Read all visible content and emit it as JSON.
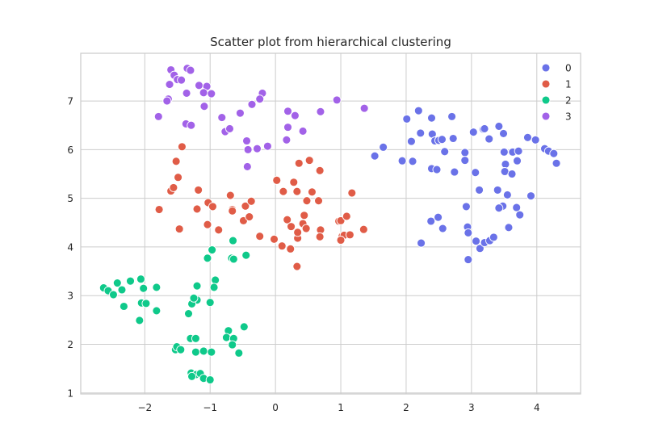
{
  "chart_data": {
    "type": "scatter",
    "title": "Scatter plot from hierarchical clustering",
    "xlabel": "",
    "ylabel": "",
    "xlim": [
      -2.98,
      4.67
    ],
    "ylim": [
      0.98,
      7.98
    ],
    "xticks": [
      -2,
      -1,
      0,
      1,
      2,
      3,
      4
    ],
    "xtick_labels": [
      "−2",
      "−1",
      "0",
      "1",
      "2",
      "3",
      "4"
    ],
    "yticks": [
      1,
      2,
      3,
      4,
      5,
      6,
      7
    ],
    "ytick_labels": [
      "1",
      "2",
      "3",
      "4",
      "5",
      "6",
      "7"
    ],
    "grid": true,
    "legend_position": "top-right",
    "series": [
      {
        "name": "0",
        "color": "#6a72e8",
        "points": [
          [
            1.52,
            5.87
          ],
          [
            1.65,
            6.05
          ],
          [
            1.94,
            5.77
          ],
          [
            2.01,
            6.63
          ],
          [
            2.1,
            5.76
          ],
          [
            2.08,
            6.17
          ],
          [
            2.19,
            6.8
          ],
          [
            2.22,
            6.34
          ],
          [
            2.39,
            6.65
          ],
          [
            2.4,
            6.32
          ],
          [
            2.44,
            6.18
          ],
          [
            2.5,
            6.19
          ],
          [
            2.55,
            6.21
          ],
          [
            2.72,
            6.23
          ],
          [
            2.7,
            6.68
          ],
          [
            2.59,
            5.96
          ],
          [
            2.39,
            5.61
          ],
          [
            2.47,
            5.59
          ],
          [
            2.74,
            5.54
          ],
          [
            2.9,
            5.94
          ],
          [
            2.9,
            5.78
          ],
          [
            3.03,
            6.36
          ],
          [
            3.18,
            6.42
          ],
          [
            3.2,
            6.43
          ],
          [
            3.27,
            6.22
          ],
          [
            3.42,
            6.48
          ],
          [
            3.49,
            6.33
          ],
          [
            3.5,
            5.95
          ],
          [
            3.63,
            5.95
          ],
          [
            3.72,
            5.97
          ],
          [
            3.7,
            5.77
          ],
          [
            3.52,
            5.7
          ],
          [
            3.51,
            5.55
          ],
          [
            3.62,
            5.5
          ],
          [
            3.86,
            6.25
          ],
          [
            3.98,
            6.2
          ],
          [
            4.12,
            6.02
          ],
          [
            4.18,
            5.97
          ],
          [
            4.26,
            5.92
          ],
          [
            4.3,
            5.72
          ],
          [
            3.06,
            5.53
          ],
          [
            3.12,
            5.17
          ],
          [
            3.4,
            5.17
          ],
          [
            3.55,
            5.07
          ],
          [
            3.69,
            4.81
          ],
          [
            3.48,
            4.84
          ],
          [
            3.42,
            4.8
          ],
          [
            3.91,
            5.05
          ],
          [
            3.74,
            4.66
          ],
          [
            3.57,
            4.4
          ],
          [
            2.92,
            4.83
          ],
          [
            2.94,
            4.41
          ],
          [
            2.95,
            4.29
          ],
          [
            3.07,
            4.12
          ],
          [
            3.13,
            3.97
          ],
          [
            3.2,
            4.09
          ],
          [
            3.28,
            4.13
          ],
          [
            3.34,
            4.2
          ],
          [
            2.95,
            3.74
          ],
          [
            2.23,
            4.08
          ],
          [
            2.38,
            4.53
          ],
          [
            2.49,
            4.61
          ],
          [
            2.56,
            4.38
          ]
        ]
      },
      {
        "name": "1",
        "color": "#e05c47",
        "points": [
          [
            -1.43,
            6.06
          ],
          [
            -1.52,
            5.76
          ],
          [
            -1.6,
            5.15
          ],
          [
            -1.56,
            5.22
          ],
          [
            -1.49,
            5.43
          ],
          [
            -1.78,
            4.77
          ],
          [
            -1.47,
            4.37
          ],
          [
            -1.18,
            5.17
          ],
          [
            -1.2,
            4.78
          ],
          [
            -1.03,
            4.91
          ],
          [
            -1.04,
            4.46
          ],
          [
            -0.96,
            4.83
          ],
          [
            -0.87,
            4.35
          ],
          [
            -0.69,
            5.06
          ],
          [
            -0.66,
            4.77
          ],
          [
            -0.66,
            4.74
          ],
          [
            -0.49,
            4.54
          ],
          [
            -0.46,
            4.84
          ],
          [
            -0.4,
            4.62
          ],
          [
            -0.37,
            4.94
          ],
          [
            -0.24,
            4.22
          ],
          [
            -0.02,
            4.16
          ],
          [
            0.02,
            5.37
          ],
          [
            0.12,
            5.14
          ],
          [
            0.1,
            4.02
          ],
          [
            0.18,
            4.56
          ],
          [
            0.24,
            4.42
          ],
          [
            0.23,
            3.96
          ],
          [
            0.28,
            5.33
          ],
          [
            0.33,
            5.14
          ],
          [
            0.34,
            4.18
          ],
          [
            0.36,
            5.72
          ],
          [
            0.42,
            4.48
          ],
          [
            0.44,
            4.65
          ],
          [
            0.47,
            4.38
          ],
          [
            0.48,
            4.95
          ],
          [
            0.52,
            5.78
          ],
          [
            0.56,
            5.13
          ],
          [
            0.66,
            4.95
          ],
          [
            0.68,
            5.57
          ],
          [
            0.69,
            4.35
          ],
          [
            0.68,
            4.21
          ],
          [
            0.97,
            4.53
          ],
          [
            1.0,
            4.54
          ],
          [
            1.02,
            4.22
          ],
          [
            1.05,
            4.24
          ],
          [
            1.09,
            4.63
          ],
          [
            1.17,
            5.11
          ],
          [
            1.14,
            4.25
          ],
          [
            1.35,
            4.36
          ],
          [
            1.0,
            4.14
          ],
          [
            0.33,
            3.6
          ],
          [
            0.34,
            4.3
          ]
        ]
      },
      {
        "name": "2",
        "color": "#0fc98a",
        "points": [
          [
            -0.65,
            4.13
          ],
          [
            -0.67,
            3.77
          ],
          [
            -0.64,
            3.75
          ],
          [
            -0.45,
            3.83
          ],
          [
            -0.97,
            3.94
          ],
          [
            -1.04,
            3.77
          ],
          [
            -0.92,
            3.32
          ],
          [
            -0.94,
            3.17
          ],
          [
            -1.2,
            3.2
          ],
          [
            -1.2,
            2.91
          ],
          [
            -1.28,
            2.83
          ],
          [
            -1.25,
            2.95
          ],
          [
            -1.33,
            2.63
          ],
          [
            -1.0,
            2.86
          ],
          [
            -2.63,
            3.16
          ],
          [
            -2.56,
            3.1
          ],
          [
            -2.48,
            3.02
          ],
          [
            -2.42,
            3.26
          ],
          [
            -2.35,
            3.12
          ],
          [
            -2.32,
            2.78
          ],
          [
            -2.22,
            3.3
          ],
          [
            -2.06,
            3.34
          ],
          [
            -2.02,
            3.15
          ],
          [
            -1.82,
            3.17
          ],
          [
            -2.05,
            2.85
          ],
          [
            -1.98,
            2.84
          ],
          [
            -1.82,
            2.69
          ],
          [
            -2.08,
            2.49
          ],
          [
            -0.72,
            2.28
          ],
          [
            -0.75,
            2.14
          ],
          [
            -0.64,
            2.12
          ],
          [
            -0.66,
            1.99
          ],
          [
            -0.56,
            1.82
          ],
          [
            -0.48,
            2.36
          ],
          [
            -1.3,
            2.12
          ],
          [
            -1.22,
            2.12
          ],
          [
            -1.53,
            1.89
          ],
          [
            -1.51,
            1.95
          ],
          [
            -1.45,
            1.89
          ],
          [
            -1.22,
            1.84
          ],
          [
            -1.1,
            1.86
          ],
          [
            -0.98,
            1.84
          ],
          [
            -1.29,
            1.41
          ],
          [
            -1.21,
            1.38
          ],
          [
            -1.28,
            1.34
          ],
          [
            -1.15,
            1.4
          ],
          [
            -1.1,
            1.3
          ],
          [
            -1.0,
            1.27
          ]
        ]
      },
      {
        "name": "3",
        "color": "#a262e8",
        "points": [
          [
            -1.6,
            7.64
          ],
          [
            -1.55,
            7.53
          ],
          [
            -1.5,
            7.44
          ],
          [
            -1.35,
            7.67
          ],
          [
            -1.3,
            7.63
          ],
          [
            -1.62,
            7.34
          ],
          [
            -1.44,
            7.43
          ],
          [
            -1.17,
            7.32
          ],
          [
            -1.05,
            7.3
          ],
          [
            -1.1,
            7.17
          ],
          [
            -0.98,
            7.15
          ],
          [
            -1.36,
            7.16
          ],
          [
            -1.64,
            7.04
          ],
          [
            -1.66,
            7.0
          ],
          [
            -1.09,
            6.89
          ],
          [
            -1.79,
            6.68
          ],
          [
            -1.37,
            6.53
          ],
          [
            -1.29,
            6.5
          ],
          [
            -0.82,
            6.66
          ],
          [
            -0.77,
            6.37
          ],
          [
            -0.7,
            6.43
          ],
          [
            -0.54,
            6.75
          ],
          [
            -0.36,
            6.93
          ],
          [
            -0.2,
            7.16
          ],
          [
            -0.24,
            7.04
          ],
          [
            -0.44,
            6.18
          ],
          [
            -0.42,
            6.0
          ],
          [
            -0.28,
            6.02
          ],
          [
            -0.12,
            6.07
          ],
          [
            -0.43,
            5.65
          ],
          [
            0.19,
            6.79
          ],
          [
            0.3,
            6.7
          ],
          [
            0.19,
            6.46
          ],
          [
            0.17,
            6.2
          ],
          [
            0.42,
            6.38
          ],
          [
            0.69,
            6.78
          ],
          [
            0.94,
            7.02
          ],
          [
            1.36,
            6.85
          ]
        ]
      }
    ]
  }
}
